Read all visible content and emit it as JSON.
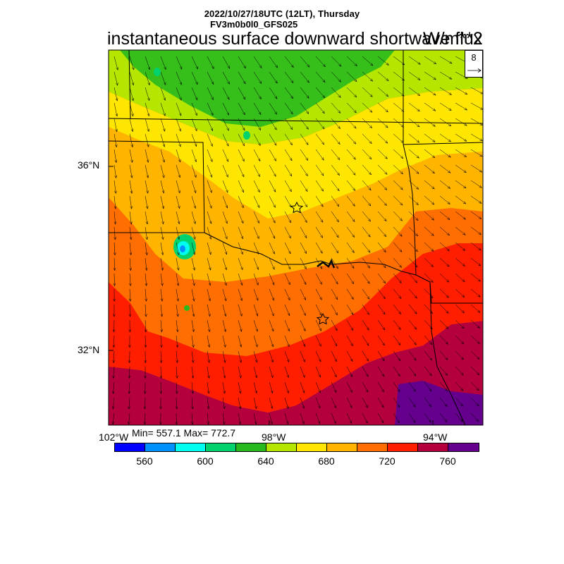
{
  "header": {
    "line1": "2022/10/27/18UTC (12LT), Thursday",
    "line2": "FV3m0b0l0_GFS025",
    "title_left": "instantaneous surface downward shortwave flux",
    "title_right": "W/m**2"
  },
  "stats": {
    "text": "Min= 557.1 Max= 772.7"
  },
  "vector_reference": {
    "value": "8"
  },
  "axes": {
    "lat_labels": [
      "36°N",
      "32°N"
    ],
    "lon_labels": [
      "102°W",
      "98°W",
      "94°W"
    ]
  },
  "colorbar": {
    "colors": [
      "#0000ff",
      "#0091ff",
      "#00fdf0",
      "#00d26e",
      "#28b91e",
      "#b4e600",
      "#ffe600",
      "#ffb400",
      "#ff6e00",
      "#ff1e00",
      "#b4003c",
      "#64008c"
    ],
    "labels": [
      "560",
      "600",
      "640",
      "680",
      "720",
      "760"
    ]
  }
}
